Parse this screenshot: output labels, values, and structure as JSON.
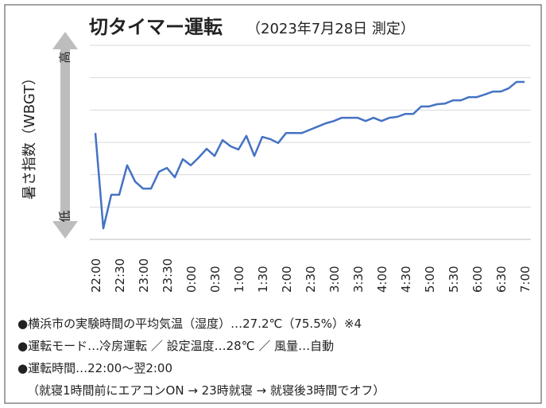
{
  "chart_data": {
    "type": "line",
    "title": "切タイマー運転",
    "subtitle": "（2023年7月28日 測定）",
    "y_label": "暑さ指数（WBGT）",
    "y_high": "高",
    "y_low": "低",
    "categories": [
      "22:00",
      null,
      null,
      "22:30",
      null,
      null,
      "23:00",
      null,
      null,
      "23:30",
      null,
      null,
      "0:00",
      null,
      null,
      "0:30",
      null,
      null,
      "1:00",
      null,
      null,
      "1:30",
      null,
      null,
      "2:00",
      null,
      null,
      "2:30",
      null,
      null,
      "3:00",
      null,
      null,
      "3:30",
      null,
      null,
      "4:00",
      null,
      null,
      "4:30",
      null,
      null,
      "5:00",
      null,
      null,
      "5:30",
      null,
      null,
      "6:00",
      null,
      null,
      "6:30",
      null,
      null,
      "7:00"
    ],
    "series": [
      {
        "color": "#4472c4",
        "values": [
          3.29,
          0.34,
          1.38,
          1.38,
          2.29,
          1.79,
          1.57,
          1.57,
          2.09,
          2.21,
          1.92,
          2.48,
          2.29,
          2.53,
          2.8,
          2.58,
          3.07,
          2.88,
          2.78,
          3.2,
          2.58,
          3.17,
          3.1,
          2.98,
          3.29,
          3.29,
          3.29,
          3.39,
          3.49,
          3.59,
          3.66,
          3.76,
          3.76,
          3.76,
          3.66,
          3.76,
          3.66,
          3.76,
          3.79,
          3.88,
          3.88,
          4.11,
          4.11,
          4.18,
          4.2,
          4.3,
          4.3,
          4.4,
          4.4,
          4.48,
          4.57,
          4.57,
          4.67,
          4.87,
          4.87
        ]
      }
    ],
    "ylim": [
      0,
      6
    ],
    "yticks": [
      0,
      1,
      2,
      3,
      4,
      5,
      6
    ],
    "grid": true,
    "notes": [
      "●横浜市の実験時間の平均気温（湿度）…27.2℃（75.5%）※4",
      "●運転モード…冷房運転 ／ 設定温度…28℃ ／ 風量…自動",
      "●運転時間…22:00～翌2:00",
      "（就寝1時間前にエアコンON → 23時就寝 → 就寝後3時間でオフ）"
    ]
  }
}
